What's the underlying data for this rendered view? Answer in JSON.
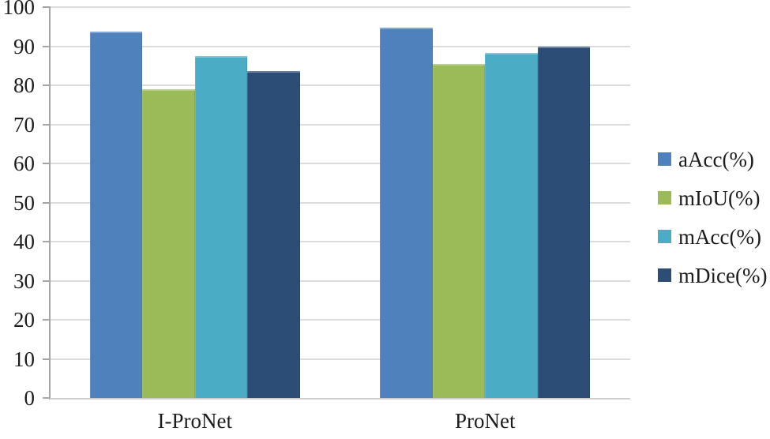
{
  "chart_data": {
    "type": "bar",
    "title": "",
    "xlabel": "",
    "ylabel": "",
    "categories": [
      "I-ProNet",
      "ProNet"
    ],
    "series": [
      {
        "name": "aAcc(%)",
        "color": "#4F81BD",
        "values": [
          93.8,
          94.8
        ]
      },
      {
        "name": "mIoU(%)",
        "color": "#9BBB59",
        "values": [
          79.0,
          85.5
        ]
      },
      {
        "name": "mAcc(%)",
        "color": "#4BACC6",
        "values": [
          87.5,
          88.2
        ]
      },
      {
        "name": "mDice(%)",
        "color": "#2C4D75",
        "values": [
          83.6,
          90.0
        ]
      }
    ],
    "ylim": [
      0,
      100
    ],
    "yticks": [
      0,
      10,
      20,
      30,
      40,
      50,
      60,
      70,
      80,
      90,
      100
    ],
    "grid": true,
    "legend_position": "right"
  },
  "colors": {
    "gridline": "#dcdcdc",
    "axis": "#a6a6a6",
    "text": "#1c1c1c",
    "background": "#ffffff"
  }
}
